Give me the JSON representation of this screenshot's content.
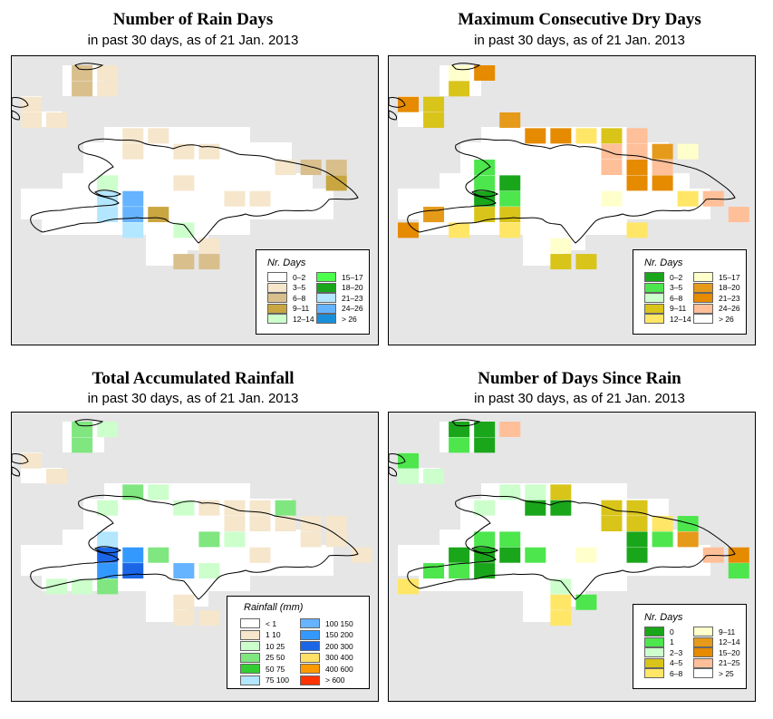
{
  "panels": [
    {
      "id": "rain-days",
      "title": "Number of Rain Days",
      "subtitle": "in past 30 days, as of  21 Jan. 2013",
      "legend": {
        "title": "Nr. Days",
        "entries": [
          {
            "label": "0–2",
            "color": "#ffffff"
          },
          {
            "label": "3–5",
            "color": "#f5e6cc"
          },
          {
            "label": "6–8",
            "color": "#d9bf8c"
          },
          {
            "label": "9–11",
            "color": "#c9a640"
          },
          {
            "label": "12–14",
            "color": "#ccffcc"
          },
          {
            "label": "15–17",
            "color": "#4dff4d"
          },
          {
            "label": "18–20",
            "color": "#1aa61a"
          },
          {
            "label": "21–23",
            "color": "#b3e6ff"
          },
          {
            "label": "24–26",
            "color": "#66b3ff"
          },
          {
            "label": "> 26",
            "color": "#1a8fd9"
          }
        ]
      },
      "cells": [
        [
          2,
          0,
          "#d9bf8c"
        ],
        [
          3,
          0,
          "#f5e6cc"
        ],
        [
          2,
          1,
          "#d9bf8c"
        ],
        [
          3,
          1,
          "#f5e6cc"
        ],
        [
          0,
          2,
          "#f5e6cc"
        ],
        [
          0,
          3,
          "#f5e6cc"
        ],
        [
          1,
          3,
          "#f5e6cc"
        ],
        [
          4,
          4,
          "#f5e6cc"
        ],
        [
          5,
          4,
          "#f5e6cc"
        ],
        [
          4,
          5,
          "#f5e6cc"
        ],
        [
          6,
          5,
          "#f5e6cc"
        ],
        [
          7,
          5,
          "#f5e6cc"
        ],
        [
          11,
          6,
          "#d9bf8c"
        ],
        [
          12,
          6,
          "#d9bf8c"
        ],
        [
          10,
          6,
          "#f5e6cc"
        ],
        [
          6,
          7,
          "#f5e6cc"
        ],
        [
          12,
          7,
          "#c9a640"
        ],
        [
          3,
          7,
          "#ccffcc"
        ],
        [
          3,
          8,
          "#b3e6ff"
        ],
        [
          4,
          8,
          "#66b3ff"
        ],
        [
          8,
          8,
          "#f5e6cc"
        ],
        [
          9,
          8,
          "#f5e6cc"
        ],
        [
          3,
          9,
          "#b3e6ff"
        ],
        [
          4,
          9,
          "#66b3ff"
        ],
        [
          5,
          9,
          "#c9a640"
        ],
        [
          6,
          10,
          "#ccffcc"
        ],
        [
          4,
          10,
          "#b3e6ff"
        ],
        [
          7,
          11,
          "#f5e6cc"
        ],
        [
          7,
          12,
          "#d9bf8c"
        ],
        [
          6,
          12,
          "#d9bf8c"
        ]
      ]
    },
    {
      "id": "dry-days",
      "title": "Maximum Consecutive Dry Days",
      "subtitle": "in past 30 days, as of  21 Jan. 2013",
      "legend": {
        "title": "Nr. Days",
        "entries": [
          {
            "label": "0–2",
            "color": "#1aa61a"
          },
          {
            "label": "3–5",
            "color": "#4de64d"
          },
          {
            "label": "6–8",
            "color": "#ccffcc"
          },
          {
            "label": "9–11",
            "color": "#d9c41a"
          },
          {
            "label": "12–14",
            "color": "#ffe666"
          },
          {
            "label": "15–17",
            "color": "#ffffcc"
          },
          {
            "label": "18–20",
            "color": "#e69a1a"
          },
          {
            "label": "21–23",
            "color": "#e68a00"
          },
          {
            "label": "24–26",
            "color": "#ffbf99"
          },
          {
            "label": "> 26",
            "color": "#ffffff"
          }
        ]
      },
      "cells": [
        [
          3,
          0,
          "#e68a00"
        ],
        [
          2,
          0,
          "#ffffcc"
        ],
        [
          2,
          1,
          "#d9c41a"
        ],
        [
          0,
          2,
          "#e68a00"
        ],
        [
          1,
          2,
          "#d9c41a"
        ],
        [
          1,
          3,
          "#d9c41a"
        ],
        [
          4,
          3,
          "#e69a1a"
        ],
        [
          5,
          4,
          "#e68a00"
        ],
        [
          6,
          4,
          "#e68a00"
        ],
        [
          7,
          4,
          "#ffe666"
        ],
        [
          8,
          4,
          "#d9c41a"
        ],
        [
          9,
          4,
          "#ffbf99"
        ],
        [
          10,
          5,
          "#e69a1a"
        ],
        [
          11,
          5,
          "#ffffcc"
        ],
        [
          8,
          5,
          "#ffbf99"
        ],
        [
          9,
          5,
          "#ffbf99"
        ],
        [
          8,
          6,
          "#ffbf99"
        ],
        [
          9,
          6,
          "#e68a00"
        ],
        [
          10,
          6,
          "#ffbf99"
        ],
        [
          3,
          6,
          "#4de64d"
        ],
        [
          3,
          7,
          "#4de64d"
        ],
        [
          4,
          7,
          "#1aa61a"
        ],
        [
          3,
          8,
          "#1aa61a"
        ],
        [
          4,
          8,
          "#4de64d"
        ],
        [
          9,
          7,
          "#e68a00"
        ],
        [
          10,
          7,
          "#e68a00"
        ],
        [
          11,
          8,
          "#ffe666"
        ],
        [
          8,
          8,
          "#ffffcc"
        ],
        [
          12,
          8,
          "#ffbf99"
        ],
        [
          1,
          9,
          "#e69a1a"
        ],
        [
          3,
          9,
          "#d9c41a"
        ],
        [
          4,
          9,
          "#d9c41a"
        ],
        [
          13,
          9,
          "#ffbf99"
        ],
        [
          0,
          10,
          "#e68a00"
        ],
        [
          2,
          10,
          "#ffe666"
        ],
        [
          4,
          10,
          "#ffe666"
        ],
        [
          9,
          10,
          "#ffe666"
        ],
        [
          6,
          11,
          "#ffffcc"
        ],
        [
          6,
          12,
          "#d9c41a"
        ],
        [
          7,
          12,
          "#d9c41a"
        ]
      ]
    },
    {
      "id": "rainfall",
      "title": "Total Accumulated Rainfall",
      "subtitle": "in past 30 days, as of  21 Jan. 2013",
      "legend": {
        "title": "Rainfall (mm)",
        "entries": [
          {
            "label": "< 1",
            "color": "#ffffff"
          },
          {
            "label": "1    10",
            "color": "#f5e6cc"
          },
          {
            "label": "10    25",
            "color": "#ccffcc"
          },
          {
            "label": "25    50",
            "color": "#80e680"
          },
          {
            "label": "50    75",
            "color": "#33cc33"
          },
          {
            "label": "75   100",
            "color": "#b3e6ff"
          },
          {
            "label": "100  150",
            "color": "#66b3ff"
          },
          {
            "label": "150  200",
            "color": "#3399ff"
          },
          {
            "label": "200  300",
            "color": "#1a66e6"
          },
          {
            "label": "300  400",
            "color": "#ffe066"
          },
          {
            "label": "400  600",
            "color": "#ff9900"
          },
          {
            "label": "> 600",
            "color": "#ff3300"
          }
        ]
      },
      "cells": [
        [
          2,
          0,
          "#80e680"
        ],
        [
          3,
          0,
          "#ccffcc"
        ],
        [
          2,
          1,
          "#80e680"
        ],
        [
          0,
          2,
          "#f5e6cc"
        ],
        [
          1,
          3,
          "#f5e6cc"
        ],
        [
          4,
          4,
          "#80e680"
        ],
        [
          5,
          4,
          "#ccffcc"
        ],
        [
          3,
          5,
          "#ccffcc"
        ],
        [
          6,
          5,
          "#ccffcc"
        ],
        [
          7,
          5,
          "#f5e6cc"
        ],
        [
          8,
          5,
          "#f5e6cc"
        ],
        [
          9,
          5,
          "#f5e6cc"
        ],
        [
          10,
          5,
          "#80e680"
        ],
        [
          8,
          6,
          "#f5e6cc"
        ],
        [
          9,
          6,
          "#f5e6cc"
        ],
        [
          10,
          6,
          "#f5e6cc"
        ],
        [
          11,
          6,
          "#f5e6cc"
        ],
        [
          12,
          6,
          "#f5e6cc"
        ],
        [
          3,
          7,
          "#b3e6ff"
        ],
        [
          7,
          7,
          "#80e680"
        ],
        [
          8,
          7,
          "#ccffcc"
        ],
        [
          11,
          7,
          "#f5e6cc"
        ],
        [
          12,
          7,
          "#f5e6cc"
        ],
        [
          3,
          8,
          "#1a66e6"
        ],
        [
          4,
          8,
          "#3399ff"
        ],
        [
          5,
          8,
          "#80e680"
        ],
        [
          9,
          8,
          "#f5e6cc"
        ],
        [
          13,
          8,
          "#f5e6cc"
        ],
        [
          3,
          9,
          "#3399ff"
        ],
        [
          4,
          9,
          "#1a66e6"
        ],
        [
          6,
          9,
          "#66b3ff"
        ],
        [
          7,
          9,
          "#ccffcc"
        ],
        [
          1,
          10,
          "#ccffcc"
        ],
        [
          2,
          10,
          "#ccffcc"
        ],
        [
          3,
          10,
          "#80e680"
        ],
        [
          6,
          11,
          "#f5e6cc"
        ],
        [
          6,
          12,
          "#f5e6cc"
        ],
        [
          7,
          12,
          "#f5e6cc"
        ]
      ]
    },
    {
      "id": "days-since-rain",
      "title": "Number of Days Since Rain",
      "subtitle": "in past 30 days, as of  21 Jan. 2013",
      "legend": {
        "title": "Nr. Days",
        "entries": [
          {
            "label": "0",
            "color": "#1aa61a"
          },
          {
            "label": "1",
            "color": "#4de64d"
          },
          {
            "label": "2–3",
            "color": "#ccffcc"
          },
          {
            "label": "4–5",
            "color": "#d9c41a"
          },
          {
            "label": "6–8",
            "color": "#ffe666"
          },
          {
            "label": "9–11",
            "color": "#ffffcc"
          },
          {
            "label": "12–14",
            "color": "#e69a1a"
          },
          {
            "label": "15–20",
            "color": "#e68a00"
          },
          {
            "label": "21–25",
            "color": "#ffbf99"
          },
          {
            "label": "> 25",
            "color": "#ffffff"
          }
        ]
      },
      "cells": [
        [
          2,
          0,
          "#1aa61a"
        ],
        [
          3,
          0,
          "#1aa61a"
        ],
        [
          4,
          0,
          "#ffbf99"
        ],
        [
          2,
          1,
          "#4de64d"
        ],
        [
          3,
          1,
          "#1aa61a"
        ],
        [
          0,
          2,
          "#4de64d"
        ],
        [
          0,
          3,
          "#ccffcc"
        ],
        [
          1,
          3,
          "#ccffcc"
        ],
        [
          4,
          4,
          "#ccffcc"
        ],
        [
          5,
          4,
          "#ccffcc"
        ],
        [
          6,
          4,
          "#d9c41a"
        ],
        [
          3,
          5,
          "#ccffcc"
        ],
        [
          5,
          5,
          "#1aa61a"
        ],
        [
          6,
          5,
          "#1aa61a"
        ],
        [
          8,
          5,
          "#d9c41a"
        ],
        [
          9,
          5,
          "#d9c41a"
        ],
        [
          8,
          6,
          "#d9c41a"
        ],
        [
          9,
          6,
          "#d9c41a"
        ],
        [
          10,
          6,
          "#ffe666"
        ],
        [
          11,
          6,
          "#4de64d"
        ],
        [
          3,
          7,
          "#4de64d"
        ],
        [
          4,
          7,
          "#4de64d"
        ],
        [
          9,
          7,
          "#1aa61a"
        ],
        [
          10,
          7,
          "#4de64d"
        ],
        [
          11,
          7,
          "#e69a1a"
        ],
        [
          2,
          8,
          "#1aa61a"
        ],
        [
          3,
          8,
          "#1aa61a"
        ],
        [
          4,
          8,
          "#1aa61a"
        ],
        [
          5,
          8,
          "#4de64d"
        ],
        [
          7,
          8,
          "#ffffcc"
        ],
        [
          9,
          8,
          "#1aa61a"
        ],
        [
          12,
          8,
          "#ffbf99"
        ],
        [
          13,
          8,
          "#e68a00"
        ],
        [
          1,
          9,
          "#4de64d"
        ],
        [
          2,
          9,
          "#4de64d"
        ],
        [
          3,
          9,
          "#1aa61a"
        ],
        [
          13,
          9,
          "#4de64d"
        ],
        [
          0,
          10,
          "#ffe666"
        ],
        [
          6,
          10,
          "#ccffcc"
        ],
        [
          6,
          11,
          "#ffe666"
        ],
        [
          7,
          11,
          "#4de64d"
        ],
        [
          6,
          12,
          "#ffe666"
        ]
      ]
    }
  ]
}
